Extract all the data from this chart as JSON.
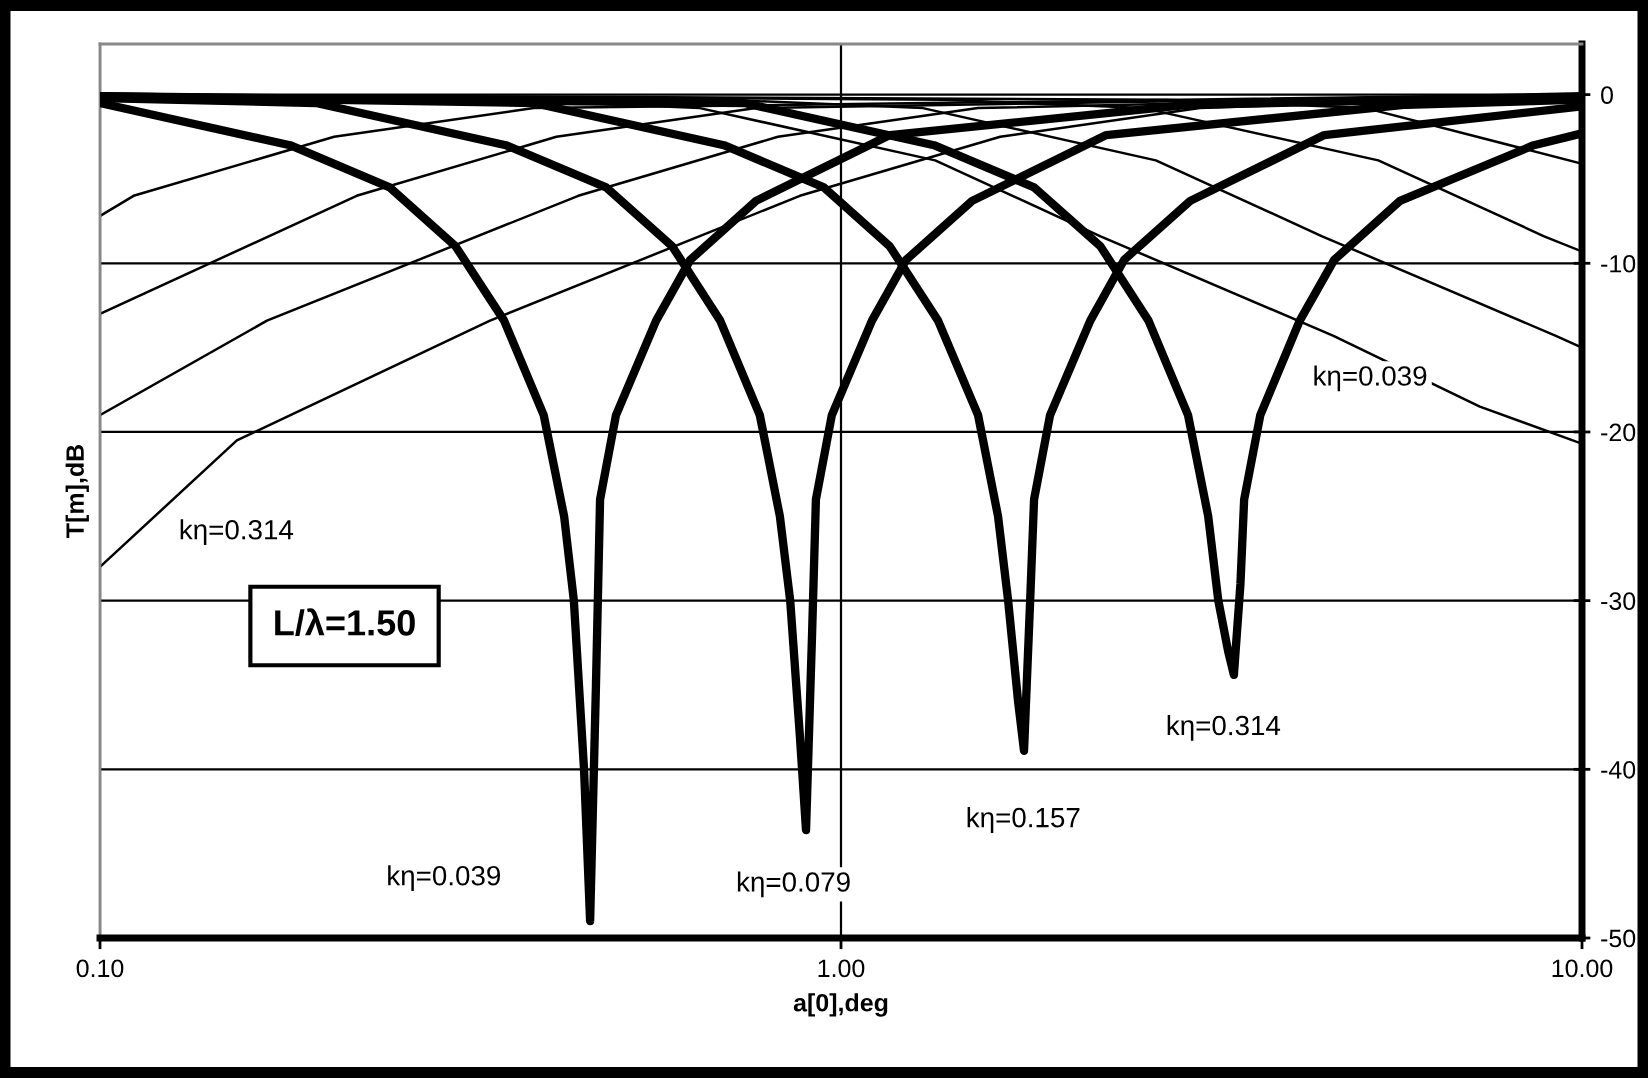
{
  "chart_data": {
    "type": "line",
    "xlabel": "a[0],deg",
    "ylabel": "T[m],dB",
    "log": "x",
    "xlim": [
      0.1,
      10
    ],
    "xticks": [
      {
        "value": 0.1,
        "label": "0.10"
      },
      {
        "value": 1,
        "label": "1.00"
      },
      {
        "value": 10,
        "label": "10.00"
      }
    ],
    "ylim": [
      -50,
      3
    ],
    "yticks": [
      0,
      -10,
      -20,
      -30,
      -40,
      -50
    ],
    "grid": true,
    "legend": false,
    "marker": "none",
    "line_style": "solid",
    "series": [
      {
        "color": "#000000",
        "x": [
          0.1,
          0.1805,
          0.246,
          0.302,
          0.351,
          0.397,
          0.423,
          0.436,
          0.45,
          0.4586,
          0.467,
          0.473,
          0.497,
          0.563,
          0.626,
          0.768,
          1.164,
          2.96,
          10
        ],
        "values": [
          -0.5,
          -3,
          -5.5,
          -9,
          -13.4,
          -19,
          -25,
          -30,
          -40,
          -49,
          -35,
          -24,
          -19,
          -13.4,
          -9.8,
          -6.3,
          -2.4,
          -0.6,
          -0.1
        ]
      },
      {
        "color": "#000000",
        "x": [
          0.1,
          0.1957,
          0.353,
          0.482,
          0.592,
          0.687,
          0.777,
          0.827,
          0.854,
          0.88,
          0.897,
          0.914,
          0.925,
          0.972,
          1.101,
          1.224,
          1.503,
          2.28,
          5.79,
          10
        ],
        "values": [
          -0.2,
          -0.5,
          -3,
          -5.5,
          -9,
          -13.4,
          -19,
          -25,
          -30,
          -38,
          -43.6,
          -32,
          -24,
          -19,
          -13.4,
          -9.8,
          -6.3,
          -2.4,
          -0.6,
          -0.3
        ]
      },
      {
        "color": "#000000",
        "x": [
          0.1,
          0.385,
          0.695,
          0.948,
          1.164,
          1.352,
          1.531,
          1.629,
          1.681,
          1.734,
          1.766,
          1.8,
          1.822,
          1.915,
          2.17,
          2.41,
          2.96,
          4.49,
          10
        ],
        "values": [
          -0.1,
          -0.5,
          -3,
          -5.5,
          -9,
          -13.4,
          -19,
          -25,
          -30,
          -36,
          -38.9,
          -30,
          -24,
          -19,
          -13.4,
          -9.8,
          -6.3,
          -2.4,
          -0.7
        ]
      },
      {
        "color": "#000000",
        "x": [
          0.1,
          0.74,
          1.335,
          1.822,
          2.24,
          2.6,
          2.94,
          3.13,
          3.23,
          3.33,
          3.39,
          3.46,
          3.5,
          3.68,
          4.16,
          4.63,
          5.68,
          8.61,
          10
        ],
        "values": [
          -0.1,
          -0.5,
          -3,
          -5.5,
          -9,
          -13.4,
          -19,
          -25,
          -30,
          -33,
          -34.4,
          -29,
          -24,
          -19,
          -13.4,
          -9.8,
          -6.3,
          -3,
          -2.3
        ]
      },
      {
        "color": "#000000",
        "x": [
          0.1,
          0.111,
          0.207,
          0.385,
          10
        ],
        "values": [
          -7.2,
          -6,
          -2.5,
          -0.8,
          0
        ]
      },
      {
        "color": "#000000",
        "x": [
          0.1,
          0.222,
          0.413,
          0.768,
          10
        ],
        "values": [
          -13,
          -6,
          -2.5,
          -0.8,
          0
        ]
      },
      {
        "color": "#000000",
        "x": [
          0.1,
          0.168,
          0.442,
          0.822,
          1.53,
          10
        ],
        "values": [
          -19,
          -13.4,
          -6,
          -2.5,
          -0.8,
          0
        ]
      },
      {
        "color": "#000000",
        "x": [
          0.1,
          0.153,
          0.336,
          0.88,
          1.64,
          3.05,
          10
        ],
        "values": [
          -28,
          -20.5,
          -13.4,
          -6,
          -2.5,
          -0.8,
          0
        ]
      },
      {
        "color": "#000000",
        "x": [
          0.1,
          0.347,
          0.645,
          1.34,
          2.24,
          4.62,
          7.28,
          10
        ],
        "values": [
          0,
          -0.3,
          -0.8,
          -3.9,
          -8.4,
          -14.3,
          -18.5,
          -20.7
        ]
      },
      {
        "color": "#000000",
        "x": [
          0.1,
          0.691,
          1.29,
          2.66,
          4.46,
          9.22,
          10
        ],
        "values": [
          0,
          -0.3,
          -0.8,
          -3.9,
          -8.4,
          -14.3,
          -15
        ]
      },
      {
        "color": "#000000",
        "x": [
          0.1,
          1.38,
          2.56,
          5.31,
          8.89,
          10
        ],
        "values": [
          0,
          -0.3,
          -0.8,
          -3.9,
          -8.4,
          -9.3
        ]
      },
      {
        "color": "#000000",
        "x": [
          0.1,
          2.75,
          5.11,
          10
        ],
        "values": [
          0,
          -0.3,
          -0.8,
          -4.1
        ]
      }
    ],
    "annotations": [
      "kη=0.039",
      "kη=0.079",
      "kη=0.157",
      "kη=0.314",
      "kη=0.039",
      "kη=0.314",
      "L/λ=1.50"
    ]
  }
}
